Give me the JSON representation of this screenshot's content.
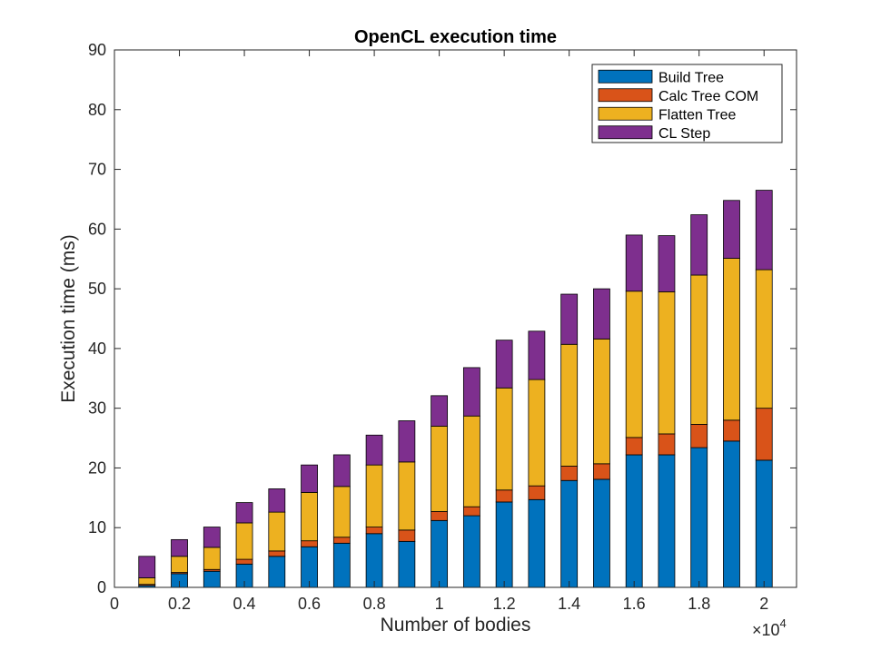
{
  "chart_data": {
    "type": "bar",
    "stacked": true,
    "title": "OpenCL execution time",
    "xlabel": "Number of bodies",
    "ylabel": "Execution time (ms)",
    "x_exponent_label": "×10",
    "x_exponent_power": "4",
    "xlim": [
      0,
      2.1
    ],
    "ylim": [
      0,
      90
    ],
    "xticks": [
      "0",
      "0.2",
      "0.4",
      "0.6",
      "0.8",
      "1",
      "1.2",
      "1.4",
      "1.6",
      "1.8",
      "2"
    ],
    "yticks": [
      "0",
      "10",
      "20",
      "30",
      "40",
      "50",
      "60",
      "70",
      "80",
      "90"
    ],
    "grid": false,
    "legend_position": "top-right",
    "x": [
      0.1,
      0.2,
      0.3,
      0.4,
      0.5,
      0.6,
      0.7,
      0.8,
      0.9,
      1.0,
      1.1,
      1.2,
      1.3,
      1.4,
      1.5,
      1.6,
      1.7,
      1.8,
      1.9,
      2.0
    ],
    "series": [
      {
        "name": "Build Tree",
        "color": "#0072BD",
        "values": [
          0.3,
          2.3,
          2.7,
          3.9,
          5.2,
          6.8,
          7.4,
          9.0,
          7.7,
          11.2,
          12.0,
          14.3,
          14.7,
          17.9,
          18.1,
          22.2,
          22.2,
          23.4,
          24.5,
          21.3
        ]
      },
      {
        "name": "Calc Tree COM",
        "color": "#D95319",
        "values": [
          0.2,
          0.2,
          0.3,
          0.8,
          0.9,
          1.0,
          1.0,
          1.1,
          1.9,
          1.5,
          1.5,
          2.0,
          2.3,
          2.4,
          2.6,
          2.9,
          3.5,
          3.9,
          3.5,
          8.7
        ]
      },
      {
        "name": "Flatten Tree",
        "color": "#EDB120",
        "values": [
          1.1,
          2.7,
          3.7,
          6.1,
          6.5,
          8.1,
          8.5,
          10.4,
          11.4,
          14.3,
          15.2,
          17.1,
          17.8,
          20.4,
          20.9,
          24.5,
          23.8,
          25.0,
          27.1,
          23.2
        ]
      },
      {
        "name": "CL Step",
        "color": "#7E2F8E",
        "values": [
          3.6,
          2.8,
          3.4,
          3.4,
          3.9,
          4.6,
          5.3,
          5.0,
          6.9,
          5.1,
          8.1,
          8.0,
          8.1,
          8.4,
          8.4,
          9.4,
          9.4,
          10.1,
          9.7,
          13.3
        ]
      }
    ]
  }
}
